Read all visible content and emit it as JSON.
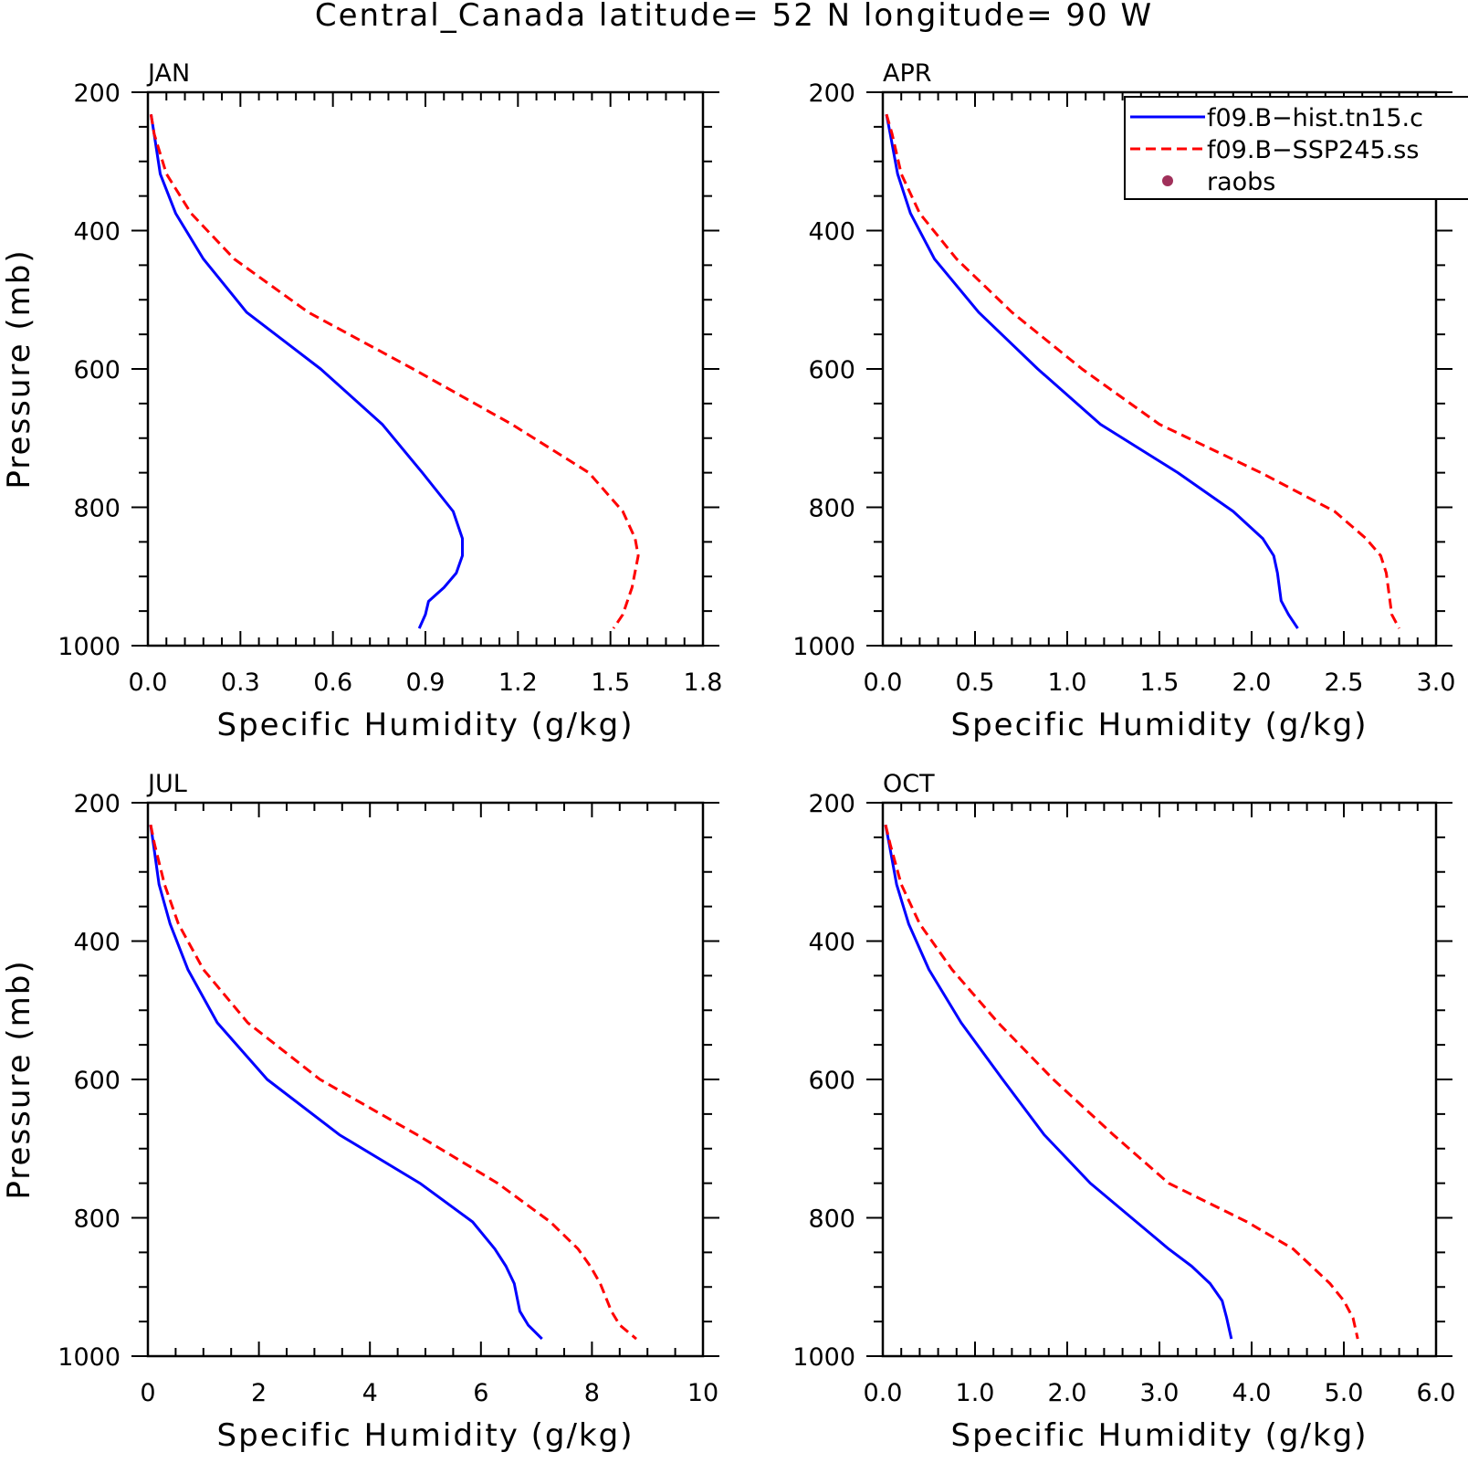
{
  "page": {
    "title": "Central_Canada  latitude= 52 N longitude= 90 W"
  },
  "colors": {
    "hist": "#0000ff",
    "ssp": "#ff0000",
    "raobs": "#a0305a",
    "axis": "#000000"
  },
  "legend": {
    "placement": "top-right of APR panel",
    "entries": [
      {
        "label": "f09.B−hist.tn15.c",
        "style": "solid",
        "color": "#0000ff"
      },
      {
        "label": "f09.B−SSP245.ss",
        "style": "dashed",
        "color": "#ff0000"
      },
      {
        "label": "raobs",
        "style": "marker",
        "color": "#a0305a"
      }
    ]
  },
  "chart_data": [
    {
      "type": "line",
      "title": "JAN",
      "xlabel": "Specific Humidity (g/kg)",
      "ylabel": "Pressure (mb)",
      "xlim": [
        0,
        1.8
      ],
      "ylim": [
        1000,
        200
      ],
      "y_reversed": true,
      "xticks": [
        "0.0",
        "0.3",
        "0.6",
        "0.9",
        "1.2",
        "1.5",
        "1.8"
      ],
      "yticks": [
        "200",
        "400",
        "600",
        "800",
        "1000"
      ],
      "series": [
        {
          "name": "f09.B−hist.tn15.c",
          "x": [
            0.01,
            0.02,
            0.04,
            0.09,
            0.18,
            0.32,
            0.56,
            0.76,
            0.89,
            0.99,
            1.02,
            1.02,
            1.0,
            0.96,
            0.91,
            0.9,
            0.88
          ],
          "y": [
            232,
            260,
            318,
            375,
            441,
            518,
            600,
            680,
            750,
            806,
            845,
            870,
            895,
            916,
            936,
            955,
            975
          ]
        },
        {
          "name": "f09.B−SSP245.ss",
          "x": [
            0.01,
            0.02,
            0.06,
            0.14,
            0.28,
            0.52,
            0.86,
            1.18,
            1.43,
            1.54,
            1.58,
            1.59,
            1.57,
            1.54,
            1.51
          ],
          "y": [
            232,
            260,
            318,
            375,
            441,
            518,
            600,
            680,
            750,
            806,
            845,
            870,
            916,
            955,
            975
          ]
        }
      ]
    },
    {
      "type": "line",
      "title": "APR",
      "xlabel": "Specific Humidity (g/kg)",
      "ylabel": "",
      "xlim": [
        0,
        3.0
      ],
      "ylim": [
        1000,
        200
      ],
      "y_reversed": true,
      "xticks": [
        "0.0",
        "0.5",
        "1.0",
        "1.5",
        "2.0",
        "2.5",
        "3.0"
      ],
      "yticks": [
        "200",
        "400",
        "600",
        "800",
        "1000"
      ],
      "series": [
        {
          "name": "f09.B−hist.tn15.c",
          "x": [
            0.02,
            0.04,
            0.08,
            0.15,
            0.28,
            0.52,
            0.84,
            1.18,
            1.6,
            1.9,
            2.06,
            2.12,
            2.14,
            2.16,
            2.2,
            2.25
          ],
          "y": [
            232,
            260,
            318,
            375,
            441,
            518,
            600,
            680,
            750,
            806,
            845,
            870,
            895,
            935,
            955,
            975
          ]
        },
        {
          "name": "f09.B−SSP245.ss",
          "x": [
            0.02,
            0.05,
            0.1,
            0.2,
            0.4,
            0.7,
            1.08,
            1.5,
            2.05,
            2.45,
            2.62,
            2.7,
            2.73,
            2.75,
            2.76,
            2.8
          ],
          "y": [
            232,
            260,
            318,
            375,
            441,
            518,
            600,
            680,
            750,
            806,
            845,
            870,
            895,
            935,
            955,
            975
          ]
        }
      ]
    },
    {
      "type": "line",
      "title": "JUL",
      "xlabel": "Specific Humidity (g/kg)",
      "ylabel": "Pressure (mb)",
      "xlim": [
        0,
        10
      ],
      "ylim": [
        1000,
        200
      ],
      "y_reversed": true,
      "xticks": [
        "0",
        "2",
        "4",
        "6",
        "8",
        "10"
      ],
      "yticks": [
        "200",
        "400",
        "600",
        "800",
        "1000"
      ],
      "series": [
        {
          "name": "f09.B−hist.tn15.c",
          "x": [
            0.05,
            0.1,
            0.2,
            0.4,
            0.72,
            1.25,
            2.15,
            3.45,
            4.9,
            5.85,
            6.25,
            6.45,
            6.6,
            6.7,
            6.85,
            7.1
          ],
          "y": [
            232,
            260,
            318,
            375,
            441,
            518,
            600,
            680,
            750,
            806,
            845,
            870,
            895,
            935,
            955,
            975
          ]
        },
        {
          "name": "f09.B−SSP245.ss",
          "x": [
            0.05,
            0.12,
            0.3,
            0.55,
            1.0,
            1.8,
            3.1,
            4.85,
            6.3,
            7.25,
            7.75,
            7.97,
            8.15,
            8.35,
            8.5,
            8.8
          ],
          "y": [
            232,
            260,
            318,
            375,
            441,
            518,
            600,
            680,
            750,
            806,
            845,
            870,
            895,
            935,
            955,
            975
          ]
        }
      ]
    },
    {
      "type": "line",
      "title": "OCT",
      "xlabel": "Specific Humidity (g/kg)",
      "ylabel": "",
      "xlim": [
        0,
        6.0
      ],
      "ylim": [
        1000,
        200
      ],
      "y_reversed": true,
      "xticks": [
        "0.0",
        "1.0",
        "2.0",
        "3.0",
        "4.0",
        "5.0",
        "6.0"
      ],
      "yticks": [
        "200",
        "400",
        "600",
        "800",
        "1000"
      ],
      "series": [
        {
          "name": "f09.B−hist.tn15.c",
          "x": [
            0.03,
            0.07,
            0.15,
            0.28,
            0.5,
            0.85,
            1.3,
            1.75,
            2.25,
            2.75,
            3.1,
            3.35,
            3.55,
            3.68,
            3.73,
            3.78
          ],
          "y": [
            232,
            260,
            318,
            375,
            441,
            518,
            600,
            680,
            750,
            806,
            845,
            870,
            895,
            920,
            945,
            975
          ]
        },
        {
          "name": "f09.B−SSP245.ss",
          "x": [
            0.03,
            0.08,
            0.2,
            0.4,
            0.75,
            1.25,
            1.85,
            2.5,
            3.1,
            3.95,
            4.45,
            4.65,
            4.85,
            5.0,
            5.1,
            5.15
          ],
          "y": [
            232,
            260,
            318,
            375,
            441,
            518,
            600,
            680,
            750,
            806,
            845,
            870,
            895,
            920,
            945,
            975
          ]
        }
      ]
    }
  ]
}
